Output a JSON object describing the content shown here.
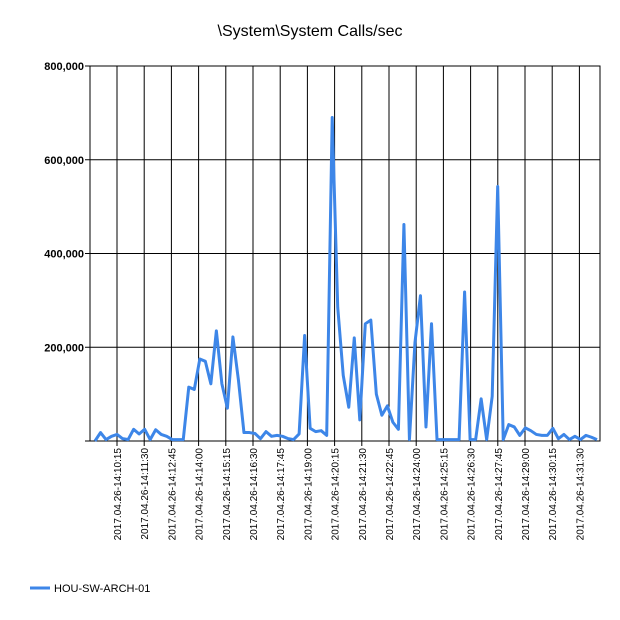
{
  "chart_data": {
    "type": "line",
    "title": "\\System\\System Calls/sec",
    "xlabel": "",
    "ylabel": "",
    "ylim": [
      0,
      800000
    ],
    "yticks": [
      {
        "value": 0,
        "label": ""
      },
      {
        "value": 200000,
        "label": "200,000"
      },
      {
        "value": 400000,
        "label": "400,000"
      },
      {
        "value": 600000,
        "label": "600,000"
      },
      {
        "value": 800000,
        "label": "800,000"
      }
    ],
    "xtick_labels": [
      "2017.04.26-14:10:15",
      "2017.04.26-14:11:30",
      "2017.04.26-14:12:45",
      "2017.04.26-14:14:00",
      "2017.04.26-14:15:15",
      "2017.04.26-14:16:30",
      "2017.04.26-14:17:45",
      "2017.04.26-14:19:00",
      "2017.04.26-14:20:15",
      "2017.04.26-14:21:30",
      "2017.04.26-14:22:45",
      "2017.04.26-14:24:00",
      "2017.04.26-14:25:15",
      "2017.04.26-14:26:30",
      "2017.04.26-14:27:45",
      "2017.04.26-14:29:00",
      "2017.04.26-14:30:15",
      "2017.04.26-14:31:30"
    ],
    "grid": true,
    "legend_position": "bottom-left",
    "series": [
      {
        "name": "HOU-SW-ARCH-01",
        "color": "#3d86e8",
        "values": [
          0,
          18000,
          3000,
          10000,
          14000,
          5000,
          3000,
          25000,
          15000,
          25000,
          3000,
          24000,
          14000,
          10000,
          3000,
          3000,
          3000,
          115000,
          110000,
          175000,
          170000,
          122000,
          235000,
          122000,
          70000,
          222000,
          130000,
          18000,
          18000,
          16000,
          5000,
          20000,
          10000,
          12000,
          10000,
          5000,
          3000,
          15000,
          225000,
          27000,
          20000,
          22000,
          12000,
          690000,
          285000,
          140000,
          72000,
          220000,
          45000,
          250000,
          258000,
          100000,
          55000,
          75000,
          40000,
          25000,
          462000,
          3000,
          210000,
          310000,
          30000,
          250000,
          3000,
          3000,
          3000,
          3000,
          3000,
          318000,
          3000,
          3000,
          90000,
          3000,
          95000,
          543000,
          3000,
          35000,
          30000,
          12000,
          28000,
          22000,
          14000,
          12000,
          12000,
          27000,
          5000,
          14000,
          3000,
          10000,
          3000,
          12000,
          8000,
          3000
        ]
      }
    ]
  }
}
